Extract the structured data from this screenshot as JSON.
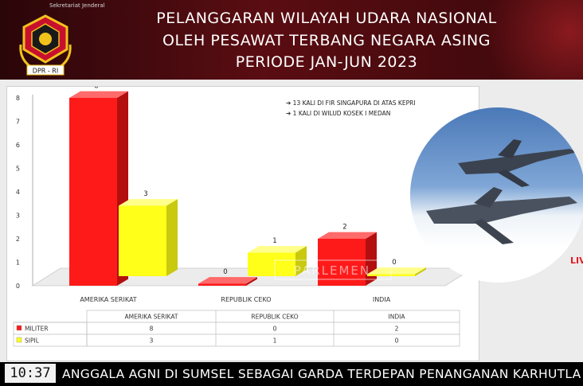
{
  "header": {
    "title_lines": [
      "PELANGGARAN WILAYAH UDARA NASIONAL",
      "OLEH PESAWAT TERBANG NEGARA ASING",
      "PERIODE JAN-JUN 2023"
    ],
    "tiny_text": "Sekretariat Jenderal",
    "logo_text": "DPR - RI"
  },
  "annotations": [
    "13 KALI DI FIR SINGAPURA DI ATAS KEPRI",
    "1 KALI DI WILUD KOSEK I MEDAN"
  ],
  "watermark": "PARLEMEN",
  "live_label": "LIV",
  "ticker": {
    "clock": "10:37",
    "text": "ANGGALA AGNI DI SUMSEL SEBAGAI GARDA TERDEPAN PENANGANAN KARHUTLA"
  },
  "colors": {
    "militer": "#ff1a1a",
    "sipil": "#ffff1a",
    "header_bg": "#4a0a0e"
  },
  "chart_data": {
    "type": "bar",
    "categories": [
      "AMERIKA SERIKAT",
      "REPUBLIK CEKO",
      "INDIA"
    ],
    "series": [
      {
        "name": "MILITER",
        "values": [
          8,
          0,
          2
        ]
      },
      {
        "name": "SIPIL",
        "values": [
          3,
          1,
          0
        ]
      }
    ],
    "yticks": [
      "0",
      "1",
      "2",
      "3",
      "4",
      "5",
      "6",
      "7",
      "8"
    ],
    "ylim": [
      0,
      8
    ],
    "data_labels": [
      [
        "8",
        "0",
        "2"
      ],
      [
        "3",
        "1",
        "0"
      ]
    ],
    "legend": "bottom",
    "table": {
      "headers": [
        "AMERIKA SERIKAT",
        "REPUBLIK CEKO",
        "INDIA"
      ],
      "rows": [
        {
          "label": "MILITER",
          "values": [
            "8",
            "0",
            "2"
          ]
        },
        {
          "label": "SIPIL",
          "values": [
            "3",
            "1",
            "0"
          ]
        }
      ]
    }
  }
}
